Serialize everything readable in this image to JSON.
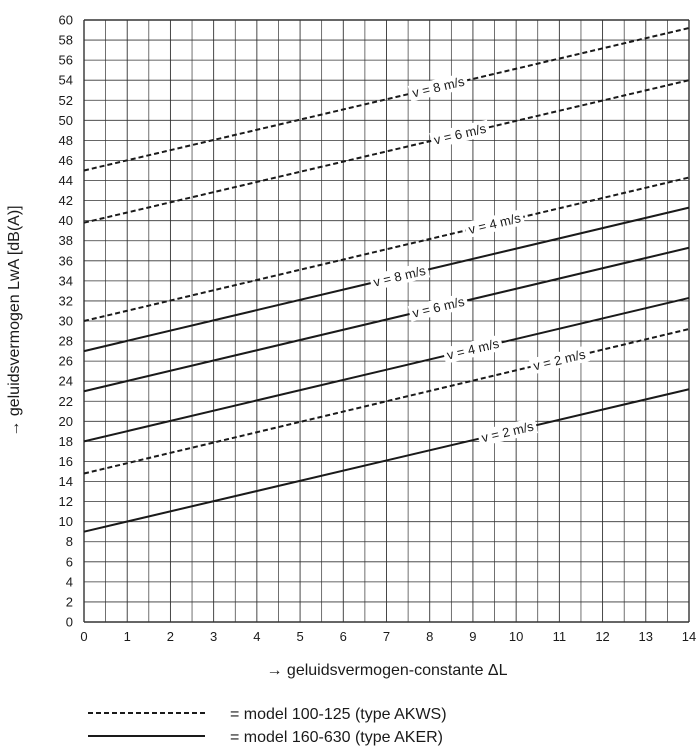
{
  "chart_data": {
    "type": "line",
    "xlabel": "→ geluidsvermogen-constante ΔL",
    "ylabel": "→ geluidsvermogen LwA [dB(A)]",
    "xlim": [
      0,
      14
    ],
    "ylim": [
      0,
      60
    ],
    "x_ticks": [
      "0",
      "1",
      "2",
      "3",
      "4",
      "5",
      "6",
      "7",
      "8",
      "9",
      "10",
      "11",
      "12",
      "13",
      "14"
    ],
    "y_ticks": [
      "0",
      "2",
      "4",
      "6",
      "8",
      "10",
      "12",
      "14",
      "16",
      "18",
      "20",
      "22",
      "24",
      "26",
      "28",
      "30",
      "32",
      "34",
      "36",
      "38",
      "40",
      "42",
      "44",
      "46",
      "48",
      "50",
      "52",
      "54",
      "56",
      "58",
      "60"
    ],
    "grid": true,
    "series": [
      {
        "model": "100-125",
        "style": "dashed",
        "label": "v = 8 m/s",
        "label_at": 8.2,
        "x": [
          0,
          14
        ],
        "y": [
          45,
          59.2
        ]
      },
      {
        "model": "100-125",
        "style": "dashed",
        "label": "v = 6 m/s",
        "label_at": 8.7,
        "x": [
          0,
          14
        ],
        "y": [
          39.8,
          54
        ]
      },
      {
        "model": "100-125",
        "style": "dashed",
        "label": "v = 4 m/s",
        "label_at": 9.5,
        "x": [
          0,
          14
        ],
        "y": [
          30,
          44.3
        ]
      },
      {
        "model": "160-630",
        "style": "solid",
        "label": "v = 8 m/s",
        "label_at": 7.3,
        "x": [
          0,
          14
        ],
        "y": [
          27,
          41.3
        ]
      },
      {
        "model": "160-630",
        "style": "solid",
        "label": "v = 6 m/s",
        "label_at": 8.2,
        "x": [
          0,
          14
        ],
        "y": [
          23,
          37.3
        ]
      },
      {
        "model": "160-630",
        "style": "solid",
        "label": "v = 4 m/s",
        "label_at": 9.0,
        "x": [
          0,
          14
        ],
        "y": [
          18,
          32.3
        ]
      },
      {
        "model": "100-125",
        "style": "dashed",
        "label": "v = 2 m/s",
        "label_at": 11.0,
        "x": [
          0,
          14
        ],
        "y": [
          14.8,
          29.2
        ]
      },
      {
        "model": "160-630",
        "style": "solid",
        "label": "v = 2 m/s",
        "label_at": 9.8,
        "x": [
          0,
          14
        ],
        "y": [
          9,
          23.2
        ]
      }
    ],
    "legend": [
      {
        "style": "dashed",
        "text": "= model 100-125 (type AKWS)"
      },
      {
        "style": "solid",
        "text": "= model 160-630 (type AKER)"
      }
    ],
    "legend_position": "bottom"
  }
}
